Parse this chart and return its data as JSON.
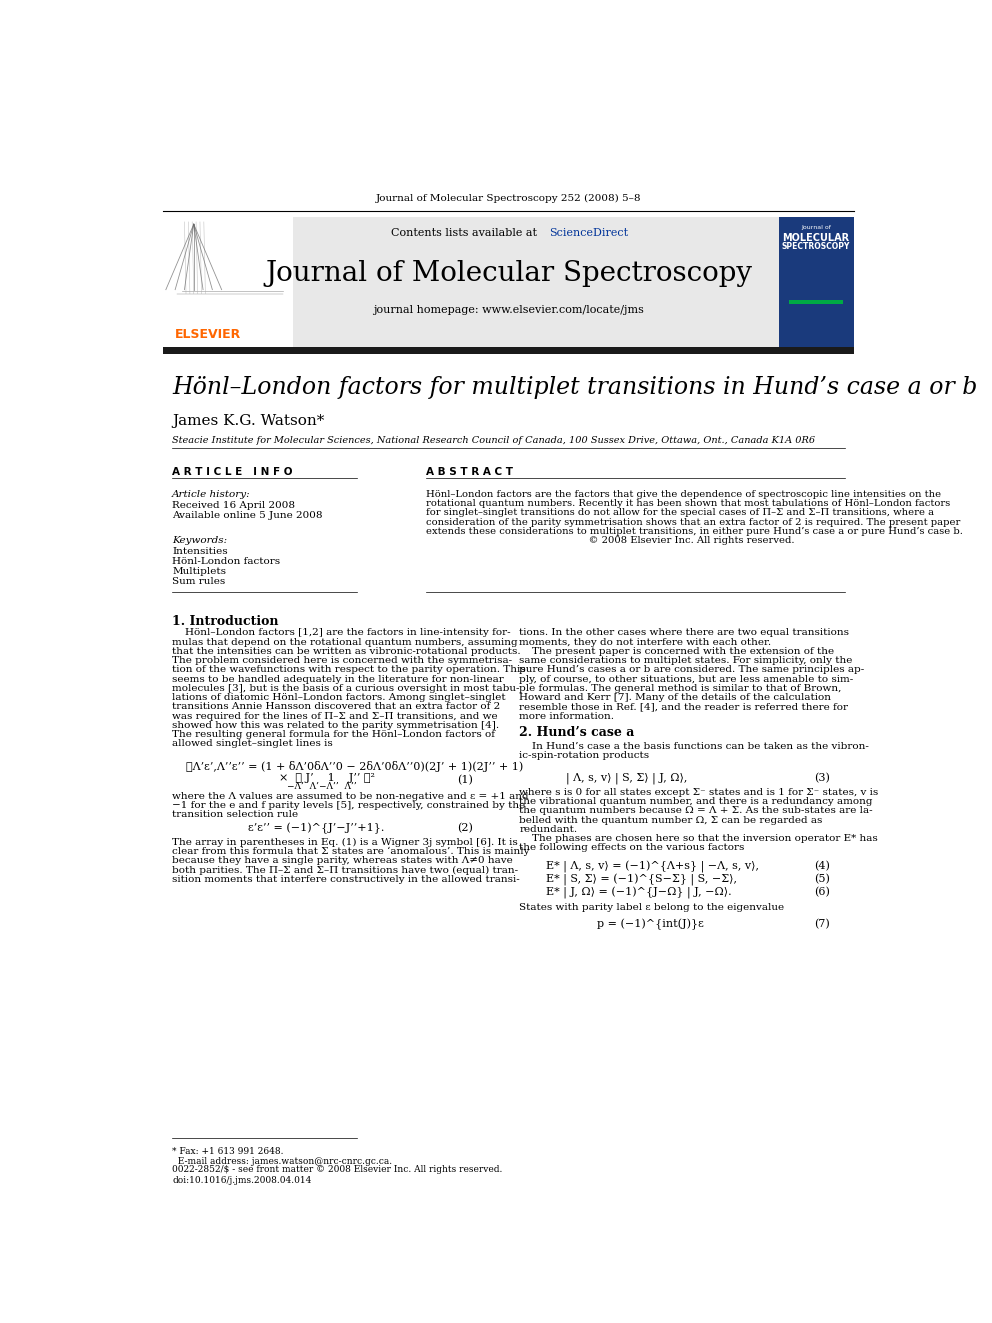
{
  "journal_header": "Journal of Molecular Spectroscopy 252 (2008) 5–8",
  "contents_line": "Contents lists available at ScienceDirect",
  "sciencedirect_color": "#003399",
  "journal_title": "Journal of Molecular Spectroscopy",
  "journal_homepage": "journal homepage: www.elsevier.com/locate/jms",
  "elsevier_color": "#FF6600",
  "header_bg": "#e8e8e8",
  "dark_bar_color": "#1a1a1a",
  "paper_title": "Hönl–London factors for multiplet transitions in Hund’s case a or b",
  "author": "James K.G. Watson*",
  "affiliation": "Steacie Institute for Molecular Sciences, National Research Council of Canada, 100 Sussex Drive, Ottawa, Ont., Canada K1A 0R6",
  "article_info_header": "A R T I C L E   I N F O",
  "abstract_header": "A B S T R A C T",
  "article_history_label": "Article history:",
  "received": "Received 16 April 2008",
  "available": "Available online 5 June 2008",
  "keywords_label": "Keywords:",
  "keywords": [
    "Intensities",
    "Hönl-London factors",
    "Multiplets",
    "Sum rules"
  ],
  "section1_title": "1. Introduction",
  "section2_title": "2. Hund’s case a",
  "states_parity_text": "States with parity label ε belong to the eigenvalue",
  "footnote_text": "* Fax: +1 613 991 2648.\n  E-mail address: james.watson@nrc-cnrc.gc.ca.",
  "copyright_text": "0022-2852/$ - see front matter © 2008 Elsevier Inc. All rights reserved.\ndoi:10.1016/j.jms.2008.04.014",
  "bg_color": "#ffffff",
  "text_color": "#000000",
  "link_color": "#003399",
  "abstract_lines": [
    "Hönl–London factors are the factors that give the dependence of spectroscopic line intensities on the",
    "rotational quantum numbers. Recently it has been shown that most tabulations of Hönl–London factors",
    "for singlet–singlet transitions do not allow for the special cases of Π–Σ and Σ–Π transitions, where a",
    "consideration of the parity symmetrisation shows that an extra factor of 2 is required. The present paper",
    "extends these considerations to multiplet transitions, in either pure Hund’s case a or pure Hund’s case b.",
    "                                                    © 2008 Elsevier Inc. All rights reserved."
  ],
  "intro_lines_left": [
    "    Hönl–London factors [1,2] are the factors in line-intensity for-",
    "mulas that depend on the rotational quantum numbers, assuming",
    "that the intensities can be written as vibronic-rotational products.",
    "The problem considered here is concerned with the symmetrisa-",
    "tion of the wavefunctions with respect to the parity operation. This",
    "seems to be handled adequately in the literature for non-linear",
    "molecules [3], but is the basis of a curious oversight in most tabu-",
    "lations of diatomic Hönl–London factors. Among singlet–singlet",
    "transitions Annie Hansson discovered that an extra factor of 2",
    "was required for the lines of Π–Σ and Σ–Π transitions, and we",
    "showed how this was related to the parity symmetrisation [4].",
    "The resulting general formula for the Hönl–London factors of",
    "allowed singlet–singlet lines is"
  ],
  "intro_lines_right": [
    "tions. In the other cases where there are two equal transitions",
    "moments, they do not interfere with each other.",
    "    The present paper is concerned with the extension of the",
    "same considerations to multiplet states. For simplicity, only the",
    "pure Hund’s cases a or b are considered. The same principles ap-",
    "ply, of course, to other situations, but are less amenable to sim-",
    "ple formulas. The general method is similar to that of Brown,",
    "Howard and Kerr [7]. Many of the details of the calculation",
    "resemble those in Ref. [4], and the reader is referred there for",
    "more information."
  ],
  "where_lines": [
    "where the Λ values are assumed to be non-negative and ε = +1 and",
    "−1 for the e and f parity levels [5], respectively, constrained by the",
    "transition selection rule"
  ],
  "after_eq2_lines": [
    "The array in parentheses in Eq. (1) is a Wigner 3j symbol [6]. It is",
    "clear from this formula that Σ states are ‘anomalous’. This is mainly",
    "because they have a single parity, whereas states with Λ≠0 have",
    "both parities. The Π–Σ and Σ–Π transitions have two (equal) tran-",
    "sition moments that interfere constructively in the allowed transi-"
  ],
  "hunds_intro_lines": [
    "    In Hund’s case a the basis functions can be taken as the vibron-",
    "ic-spin-rotation products"
  ],
  "hunds_after_eq3_lines": [
    "where s is 0 for all states except Σ⁻ states and is 1 for Σ⁻ states, v is",
    "the vibrational quantum number, and there is a redundancy among",
    "the quantum numbers because Ω = Λ + Σ. As the sub-states are la-",
    "belled with the quantum number Ω, Σ can be regarded as",
    "redundant.",
    "    The phases are chosen here so that the inversion operator E* has",
    "the following effects on the various factors"
  ]
}
